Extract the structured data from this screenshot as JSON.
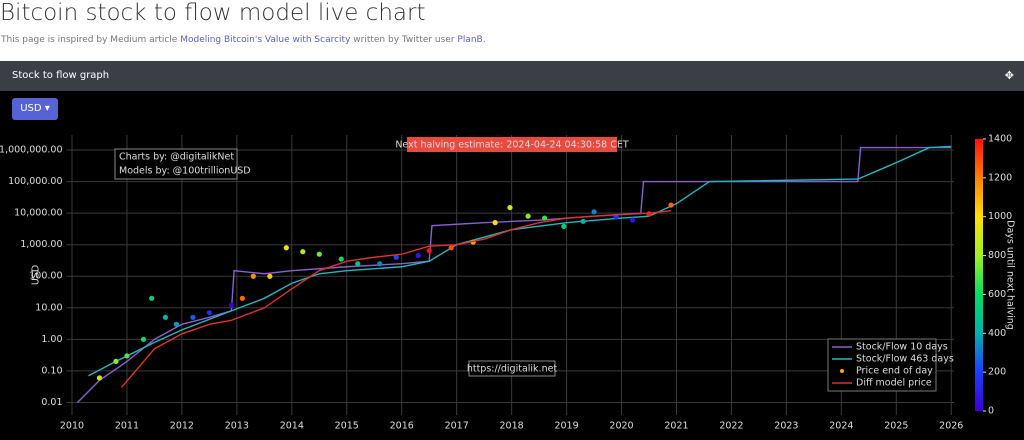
{
  "header": {
    "title": "Bitcoin stock to flow model live chart",
    "subtitle": [
      "This page is inspired by Medium article ",
      "Modeling Bitcoin's Value with Scarcity",
      " written by Twitter user ",
      "PlanB",
      "."
    ]
  },
  "panel": {
    "title": "Stock to flow graph",
    "button": "USD"
  },
  "chart_data": {
    "type": "line",
    "ylabel": "USD",
    "log_y": true,
    "grid": true,
    "legend": "bottom-right",
    "annotations": [
      "Next halving estimate: 2024-04-24 04:30:58 CET",
      "Charts by: @digitalikNet",
      "Models by: @100trillionUSD",
      "https://digitalik.net"
    ],
    "xlim": [
      2009.9,
      2026.05
    ],
    "xticks": [
      2010,
      2011,
      2012,
      2013,
      2014,
      2015,
      2016,
      2017,
      2018,
      2019,
      2020,
      2021,
      2022,
      2023,
      2024,
      2025,
      2026
    ],
    "ylim": [
      0.004,
      3000000
    ],
    "yticks": [
      0.01,
      {
        "value": 0.1,
        "label": "0.10"
      },
      {
        "value": 1,
        "label": "1.00"
      },
      {
        "value": 10,
        "label": "10.00"
      },
      {
        "value": 100,
        "label": "100.00"
      },
      {
        "value": 1000,
        "label": "1,000.00"
      },
      {
        "value": 10000,
        "label": "10,000.00"
      },
      {
        "value": 100000,
        "label": "100,000.00"
      },
      {
        "value": 1000000,
        "label": "1,000,000.00"
      }
    ],
    "colorbar": {
      "title": "Days until next halving",
      "lim": [
        0,
        1400
      ],
      "ticks": [
        0,
        200,
        400,
        600,
        800,
        1000,
        1200,
        1400
      ],
      "colorscale": [
        "#3a00d8",
        "#1c3cff",
        "#00b0b0",
        "#00e060",
        "#a0f020",
        "#ffe000",
        "#ff8000",
        "#ff1010"
      ]
    },
    "series": [
      {
        "name": "Stock/Flow 10 days",
        "color": "#8a5fd0",
        "style": "line",
        "x": [
          2010.1,
          2010.5,
          2011.0,
          2011.5,
          2012.0,
          2012.5,
          2012.9,
          2012.95,
          2013.5,
          2014.0,
          2015.0,
          2016.0,
          2016.5,
          2016.55,
          2017.5,
          2018.5,
          2019.5,
          2020.35,
          2020.4,
          2021.6,
          2024.3,
          2024.35,
          2026.0
        ],
        "values": [
          0.01,
          0.05,
          0.2,
          1,
          3,
          5,
          8,
          150,
          120,
          150,
          200,
          250,
          300,
          4000,
          5000,
          6000,
          8000,
          10000,
          100000,
          100000,
          100000,
          1200000,
          1200000
        ]
      },
      {
        "name": "Stock/Flow 463 days",
        "color": "#20b8c0",
        "style": "line",
        "x": [
          2010.3,
          2010.8,
          2011.5,
          2012.0,
          2012.9,
          2013.5,
          2014.0,
          2014.5,
          2015.0,
          2016.0,
          2016.5,
          2017.0,
          2018.0,
          2019.0,
          2020.0,
          2020.5,
          2021.0,
          2021.6,
          2024.3,
          2025.0,
          2025.6,
          2026.0
        ],
        "values": [
          0.07,
          0.2,
          0.8,
          2,
          8,
          20,
          60,
          120,
          150,
          200,
          300,
          1000,
          3000,
          5000,
          7000,
          8000,
          20000,
          100000,
          120000,
          400000,
          1200000,
          1300000
        ]
      },
      {
        "name": "Price end of day",
        "color": "#ffa500",
        "style": "markers",
        "x": [
          2010.5,
          2010.8,
          2011.0,
          2011.3,
          2011.45,
          2011.7,
          2011.9,
          2012.2,
          2012.5,
          2012.9,
          2013.1,
          2013.3,
          2013.6,
          2013.9,
          2014.2,
          2014.5,
          2014.9,
          2015.2,
          2015.6,
          2015.9,
          2016.3,
          2016.5,
          2016.9,
          2017.3,
          2017.7,
          2017.97,
          2018.3,
          2018.6,
          2018.95,
          2019.3,
          2019.5,
          2019.9,
          2020.2,
          2020.5,
          2020.9
        ],
        "values": [
          0.06,
          0.2,
          0.3,
          1,
          20,
          5,
          3,
          5,
          7,
          12,
          20,
          100,
          100,
          800,
          600,
          500,
          350,
          250,
          250,
          400,
          450,
          650,
          800,
          1200,
          5000,
          15000,
          8000,
          7000,
          3800,
          5500,
          11000,
          7500,
          6000,
          9500,
          18000
        ],
        "color_values": [
          876,
          766,
          693,
          584,
          530,
          438,
          365,
          256,
          146,
          5,
          1240,
          1168,
          1059,
          949,
          840,
          730,
          584,
          475,
          329,
          219,
          73,
          1400,
          1290,
          1144,
          1000,
          900,
          767,
          657,
          530,
          401,
          329,
          183,
          73,
          1380,
          1250
        ]
      },
      {
        "name": "Diff model price",
        "color": "#e03030",
        "style": "line",
        "x": [
          2010.9,
          2011.5,
          2012.0,
          2012.5,
          2012.9,
          2013.5,
          2014.0,
          2014.5,
          2015.0,
          2015.5,
          2016.0,
          2016.5,
          2017.0,
          2017.5,
          2018.0,
          2018.5,
          2019.0,
          2019.5,
          2020.0,
          2020.5,
          2020.9
        ],
        "values": [
          0.03,
          0.5,
          1.5,
          3,
          4,
          10,
          40,
          150,
          300,
          400,
          500,
          900,
          1000,
          1500,
          3000,
          5000,
          7000,
          8000,
          9000,
          10000,
          12000
        ]
      }
    ]
  }
}
